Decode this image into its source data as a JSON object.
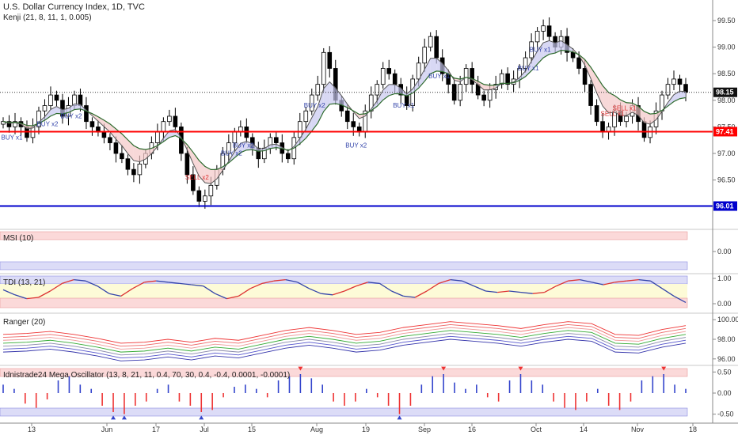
{
  "header": {
    "symbol_line": "U.S. Dollar Currency Index, 1D, TVC",
    "indicator_line": "Kenji (21, 8, 11, 1, 0.005)"
  },
  "panes": {
    "msi_title": "MSI (10)",
    "tdi_title": "TDI (13, 21)",
    "ranger_title": "Ranger (20)",
    "osc_title": "Idnistrade24 Mega Oscillator (13, 8, 21, 11, 0.4, 70, 30, 0.4, -0.4, 0.0001, -0.0001)"
  },
  "colors": {
    "up": "#ffffff",
    "down": "#000000",
    "hline_red": "#ff0000",
    "hline_blue": "#0000cc",
    "kenji_fast": "#555555",
    "kenji_slow": "#2e6b2e",
    "cloud_bull": "#c8c8f0",
    "cloud_bear": "#f4c8c8",
    "buy": "#3344aa",
    "sell": "#dd3333"
  },
  "chart_data": [
    {
      "type": "candlestick",
      "title": "U.S. Dollar Currency Index, 1D, TVC",
      "ylim": [
        95.6,
        99.85
      ],
      "y_ticks": [
        "99.50",
        "99.00",
        "98.50",
        "98.00",
        "97.50",
        "97.00",
        "96.50"
      ],
      "x_ticks": [
        "13",
        "Jun",
        "17",
        "Jul",
        "15",
        "Aug",
        "19",
        "Sep",
        "16",
        "Oct",
        "14",
        "Nov",
        "18"
      ],
      "last_price": 98.15,
      "horizontal_levels": [
        {
          "value": 97.41,
          "label": "97.41",
          "color": "#ff0000"
        },
        {
          "value": 96.01,
          "label": "96.01",
          "color": "#0000cc"
        }
      ],
      "closes": [
        97.6,
        97.5,
        97.6,
        97.5,
        97.3,
        97.5,
        97.8,
        97.9,
        98.1,
        98.0,
        97.7,
        97.9,
        98.1,
        97.9,
        97.6,
        97.5,
        97.4,
        97.3,
        97.2,
        97.0,
        96.9,
        96.7,
        96.6,
        96.8,
        97.0,
        97.2,
        97.4,
        97.6,
        97.7,
        97.5,
        97.0,
        96.6,
        96.3,
        96.1,
        96.2,
        96.4,
        96.7,
        97.0,
        97.2,
        97.4,
        97.5,
        97.3,
        97.1,
        96.9,
        97.1,
        97.3,
        97.2,
        97.0,
        96.9,
        97.3,
        97.6,
        97.8,
        98.1,
        98.3,
        98.9,
        98.6,
        98.0,
        97.8,
        97.6,
        97.5,
        97.4,
        97.8,
        98.1,
        98.3,
        98.6,
        98.5,
        98.3,
        98.1,
        97.9,
        98.4,
        98.7,
        99.0,
        99.2,
        98.8,
        98.5,
        98.3,
        98.0,
        98.3,
        98.6,
        98.3,
        98.1,
        98.0,
        98.2,
        98.3,
        98.5,
        98.3,
        98.4,
        98.6,
        98.8,
        99.1,
        99.3,
        99.4,
        99.2,
        99.0,
        99.2,
        98.9,
        98.8,
        98.6,
        98.3,
        97.9,
        97.6,
        97.4,
        97.5,
        97.8,
        97.6,
        97.7,
        97.9,
        97.6,
        97.3,
        97.5,
        97.8,
        98.1,
        98.3,
        98.4,
        98.3,
        98.15
      ],
      "signals": [
        {
          "label": "BUY x1",
          "kind": "buy"
        },
        {
          "label": "BUY x2",
          "kind": "buy"
        },
        {
          "label": "BUY x2",
          "kind": "buy"
        },
        {
          "label": "SELL x2",
          "kind": "sell"
        },
        {
          "label": "BUY x2",
          "kind": "buy"
        },
        {
          "label": "BUY x2",
          "kind": "buy"
        },
        {
          "label": "BUY x2",
          "kind": "buy"
        },
        {
          "label": "BUY x2",
          "kind": "buy"
        },
        {
          "label": "BUY x1",
          "kind": "buy"
        },
        {
          "label": "BUY x1",
          "kind": "buy"
        },
        {
          "label": "BUY x1",
          "kind": "buy"
        },
        {
          "label": "BUY x1",
          "kind": "buy"
        },
        {
          "label": "SELL x1",
          "kind": "sell"
        },
        {
          "label": "SELL x1",
          "kind": "sell"
        }
      ]
    },
    {
      "type": "area",
      "title": "MSI (10)",
      "y_ticks": [
        "0.00"
      ]
    },
    {
      "type": "line",
      "title": "TDI (13, 21)",
      "y_ticks": [
        "1.00",
        "0.00"
      ],
      "values": [
        0.55,
        0.35,
        0.2,
        0.25,
        0.5,
        0.8,
        0.95,
        0.9,
        0.7,
        0.4,
        0.3,
        0.6,
        0.85,
        0.9,
        0.85,
        0.8,
        0.75,
        0.7,
        0.4,
        0.2,
        0.3,
        0.6,
        0.8,
        0.9,
        0.95,
        0.85,
        0.6,
        0.4,
        0.35,
        0.5,
        0.7,
        0.85,
        0.8,
        0.5,
        0.3,
        0.25,
        0.5,
        0.8,
        0.95,
        0.9,
        0.7,
        0.5,
        0.45,
        0.5,
        0.45,
        0.4,
        0.45,
        0.7,
        0.9,
        0.95,
        0.85,
        0.75,
        0.85,
        0.9,
        0.95,
        0.9,
        0.6,
        0.3,
        0.05
      ]
    },
    {
      "type": "line",
      "title": "Ranger (20)",
      "y_ticks": [
        "100.00",
        "98.00",
        "96.00"
      ],
      "ylim": [
        95.5,
        100.5
      ],
      "values": [
        97.6,
        97.7,
        97.9,
        97.6,
        97.2,
        96.7,
        96.8,
        97.1,
        96.8,
        97.2,
        97.0,
        97.5,
        98.0,
        98.3,
        98.0,
        97.6,
        97.8,
        98.3,
        98.6,
        98.9,
        98.7,
        98.5,
        98.2,
        98.6,
        98.9,
        98.7,
        97.6,
        97.5,
        98.1,
        98.5
      ]
    },
    {
      "type": "bar",
      "title": "Idnistrade24 Mega Oscillator (13, 8, 21, 11, 0.4, 70, 30, 0.4, -0.4, 0.0001, -0.0001)",
      "y_ticks": [
        "0.50",
        "0.00",
        "-0.50"
      ],
      "ylim": [
        -0.6,
        0.6
      ],
      "values": [
        0.2,
        0.1,
        -0.25,
        -0.35,
        -0.15,
        0.3,
        0.4,
        0.2,
        0.1,
        -0.3,
        -0.45,
        -0.5,
        -0.3,
        -0.2,
        0.1,
        0.2,
        -0.2,
        -0.3,
        -0.45,
        -0.4,
        -0.1,
        0.15,
        0.2,
        0.1,
        -0.1,
        0.3,
        0.4,
        0.45,
        0.35,
        0.2,
        -0.2,
        -0.3,
        -0.2,
        0.1,
        -0.1,
        -0.3,
        -0.5,
        -0.3,
        0.2,
        0.4,
        0.45,
        0.25,
        0.1,
        0.2,
        -0.1,
        -0.2,
        0.3,
        0.45,
        0.3,
        0.2,
        -0.2,
        -0.35,
        -0.4,
        -0.2,
        0.1,
        -0.3,
        -0.4,
        -0.2,
        0.3,
        0.4,
        0.45,
        0.2,
        0.1
      ]
    }
  ]
}
